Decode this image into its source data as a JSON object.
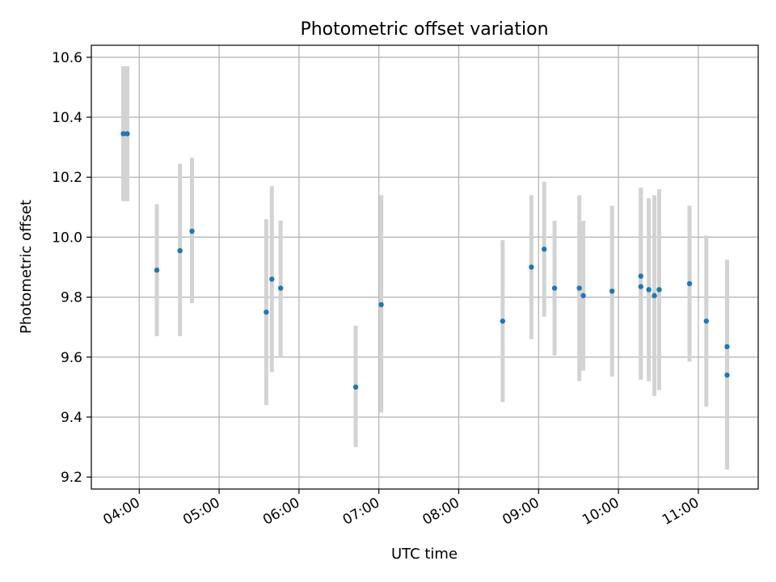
{
  "chart_data": {
    "type": "scatter",
    "title": "Photometric offset variation",
    "xlabel": "UTC time",
    "ylabel": "Photometric offset",
    "x_unit": "hours UTC",
    "xlim": [
      3.4,
      11.75
    ],
    "ylim": [
      9.16,
      10.64
    ],
    "grid": true,
    "x_ticks": [
      {
        "value": 4,
        "label": "04:00"
      },
      {
        "value": 5,
        "label": "05:00"
      },
      {
        "value": 6,
        "label": "06:00"
      },
      {
        "value": 7,
        "label": "07:00"
      },
      {
        "value": 8,
        "label": "08:00"
      },
      {
        "value": 9,
        "label": "09:00"
      },
      {
        "value": 10,
        "label": "10:00"
      },
      {
        "value": 11,
        "label": "11:00"
      }
    ],
    "y_ticks": [
      {
        "value": 9.2,
        "label": "9.2"
      },
      {
        "value": 9.4,
        "label": "9.4"
      },
      {
        "value": 9.6,
        "label": "9.6"
      },
      {
        "value": 9.8,
        "label": "9.8"
      },
      {
        "value": 10.0,
        "label": "10.0"
      },
      {
        "value": 10.2,
        "label": "10.2"
      },
      {
        "value": 10.4,
        "label": "10.4"
      },
      {
        "value": 10.6,
        "label": "10.6"
      }
    ],
    "colors": {
      "points": "#1f77b4",
      "errorbars": "#d3d3d3",
      "grid": "#b0b0b0"
    },
    "points": [
      {
        "x": 3.8,
        "y": 10.345,
        "low": 10.12,
        "high": 10.57
      },
      {
        "x": 3.85,
        "y": 10.345,
        "low": 10.12,
        "high": 10.57
      },
      {
        "x": 4.22,
        "y": 9.89,
        "low": 9.67,
        "high": 10.11
      },
      {
        "x": 4.51,
        "y": 9.955,
        "low": 9.67,
        "high": 10.245
      },
      {
        "x": 4.66,
        "y": 10.02,
        "low": 9.78,
        "high": 10.265
      },
      {
        "x": 5.59,
        "y": 9.75,
        "low": 9.44,
        "high": 10.06
      },
      {
        "x": 5.66,
        "y": 9.86,
        "low": 9.55,
        "high": 10.17
      },
      {
        "x": 5.77,
        "y": 9.83,
        "low": 9.6,
        "high": 10.055
      },
      {
        "x": 6.71,
        "y": 9.5,
        "low": 9.3,
        "high": 9.705
      },
      {
        "x": 7.03,
        "y": 9.775,
        "low": 9.415,
        "high": 10.14
      },
      {
        "x": 8.55,
        "y": 9.72,
        "low": 9.45,
        "high": 9.99
      },
      {
        "x": 8.91,
        "y": 9.9,
        "low": 9.66,
        "high": 10.14
      },
      {
        "x": 9.07,
        "y": 9.96,
        "low": 9.735,
        "high": 10.185
      },
      {
        "x": 9.2,
        "y": 9.83,
        "low": 9.605,
        "high": 10.055
      },
      {
        "x": 9.51,
        "y": 9.83,
        "low": 9.52,
        "high": 10.14
      },
      {
        "x": 9.56,
        "y": 9.805,
        "low": 9.555,
        "high": 10.055
      },
      {
        "x": 9.92,
        "y": 9.82,
        "low": 9.535,
        "high": 10.105
      },
      {
        "x": 10.28,
        "y": 9.87,
        "low": 9.525,
        "high": 10.165
      },
      {
        "x": 10.28,
        "y": 9.835,
        "low": 9.525,
        "high": 10.165
      },
      {
        "x": 10.38,
        "y": 9.825,
        "low": 9.52,
        "high": 10.13
      },
      {
        "x": 10.45,
        "y": 9.805,
        "low": 9.47,
        "high": 10.14
      },
      {
        "x": 10.51,
        "y": 9.825,
        "low": 9.49,
        "high": 10.16
      },
      {
        "x": 10.89,
        "y": 9.845,
        "low": 9.585,
        "high": 10.105
      },
      {
        "x": 11.1,
        "y": 9.72,
        "low": 9.435,
        "high": 10.005
      },
      {
        "x": 11.36,
        "y": 9.635,
        "low": 9.225,
        "high": 9.925
      },
      {
        "x": 11.36,
        "y": 9.54,
        "low": 9.225,
        "high": 9.865
      }
    ]
  }
}
